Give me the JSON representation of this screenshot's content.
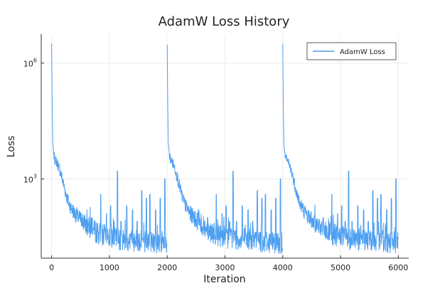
{
  "chart_data": {
    "type": "line",
    "title": "AdamW Loss History",
    "xlabel": "Iteration",
    "ylabel": "Loss",
    "xlim": [
      -180,
      6180
    ],
    "ylim_log10": [
      0.95,
      6.75
    ],
    "x_ticks": [
      0,
      1000,
      2000,
      3000,
      4000,
      5000,
      6000
    ],
    "x_tick_labels": [
      "0",
      "1000",
      "2000",
      "3000",
      "4000",
      "5000",
      "6000"
    ],
    "y_ticks_log10": [
      3,
      6
    ],
    "y_tick_labels": [
      {
        "base": "10",
        "exp": "3"
      },
      {
        "base": "10",
        "exp": "6"
      }
    ],
    "y_scale": "log",
    "grid": true,
    "legend_position": "top-right",
    "series": [
      {
        "name": "AdamW Loss",
        "color": "#4e9ff0",
        "restarts": [
          0,
          2000,
          4000
        ],
        "cycle_length": 2000,
        "points_log10": [
          [
            0,
            6.5
          ],
          [
            5,
            5.7
          ],
          [
            10,
            4.8
          ],
          [
            20,
            3.9
          ],
          [
            40,
            3.6
          ],
          [
            60,
            3.5
          ],
          [
            100,
            3.4
          ],
          [
            150,
            3.2
          ],
          [
            200,
            2.9
          ],
          [
            250,
            2.6
          ],
          [
            300,
            2.35
          ],
          [
            400,
            2.1
          ],
          [
            500,
            1.95
          ],
          [
            600,
            1.8
          ],
          [
            700,
            1.7
          ],
          [
            800,
            1.6
          ],
          [
            900,
            1.55
          ],
          [
            1000,
            1.5
          ],
          [
            1200,
            1.45
          ],
          [
            1400,
            1.42
          ],
          [
            1600,
            1.4
          ],
          [
            1800,
            1.38
          ],
          [
            1999,
            1.35
          ]
        ],
        "spikes_log10": [
          [
            700,
            2.0
          ],
          [
            850,
            2.6
          ],
          [
            950,
            2.1
          ],
          [
            1020,
            2.3
          ],
          [
            1080,
            1.9
          ],
          [
            1140,
            3.2
          ],
          [
            1200,
            1.9
          ],
          [
            1300,
            2.3
          ],
          [
            1400,
            2.2
          ],
          [
            1480,
            1.9
          ],
          [
            1560,
            2.7
          ],
          [
            1640,
            2.5
          ],
          [
            1700,
            2.6
          ],
          [
            1800,
            2.2
          ],
          [
            1880,
            2.5
          ],
          [
            1960,
            3.0
          ]
        ]
      }
    ]
  }
}
